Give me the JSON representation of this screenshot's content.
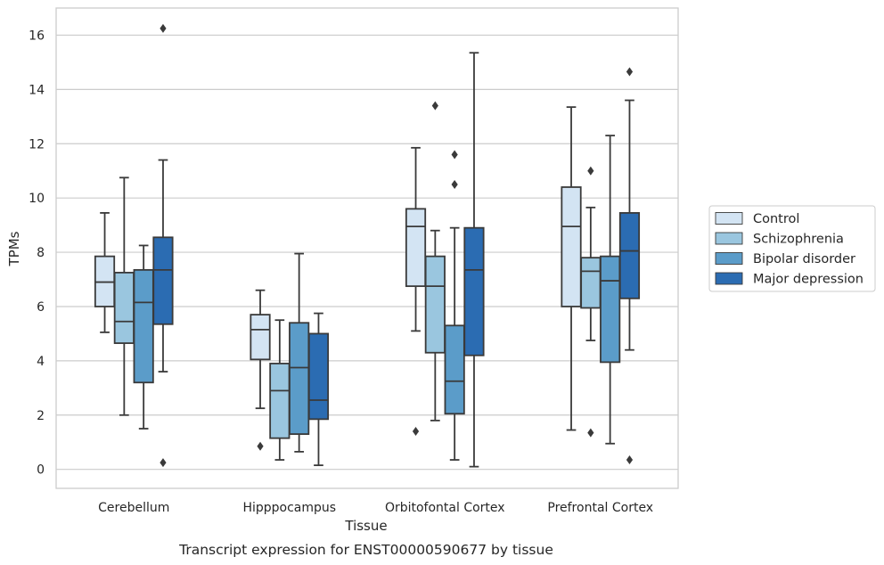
{
  "chart_data": {
    "type": "box",
    "caption": "Transcript expression for ENST00000590677 by tissue",
    "xlabel": "Tissue",
    "ylabel": "TPMs",
    "ylim": [
      -0.7,
      17
    ],
    "yticks": [
      0,
      2,
      4,
      6,
      8,
      10,
      12,
      14,
      16
    ],
    "grid": "horizontal",
    "legend_position": "right",
    "categories": [
      "Cerebellum",
      "Hipppocampus",
      "Orbitofontal Cortex",
      "Prefrontal Cortex"
    ],
    "series": [
      {
        "name": "Control",
        "color": "#d3e4f3",
        "boxes": [
          {
            "whislo": 5.05,
            "q1": 6.0,
            "med": 6.9,
            "q3": 7.85,
            "whishi": 9.45,
            "fliers": []
          },
          {
            "whislo": 2.25,
            "q1": 4.05,
            "med": 5.15,
            "q3": 5.7,
            "whishi": 6.6,
            "fliers": [
              0.85
            ]
          },
          {
            "whislo": 5.1,
            "q1": 6.75,
            "med": 8.95,
            "q3": 9.6,
            "whishi": 11.85,
            "fliers": [
              1.4
            ]
          },
          {
            "whislo": 1.45,
            "q1": 6.0,
            "med": 8.95,
            "q3": 10.4,
            "whishi": 13.35,
            "fliers": []
          }
        ]
      },
      {
        "name": "Schizophrenia",
        "color": "#9ac6df",
        "boxes": [
          {
            "whislo": 2.0,
            "q1": 4.65,
            "med": 5.45,
            "q3": 7.25,
            "whishi": 10.75,
            "fliers": []
          },
          {
            "whislo": 0.35,
            "q1": 1.15,
            "med": 2.9,
            "q3": 3.9,
            "whishi": 5.5,
            "fliers": []
          },
          {
            "whislo": 1.8,
            "q1": 4.3,
            "med": 6.75,
            "q3": 7.85,
            "whishi": 8.8,
            "fliers": [
              13.4
            ]
          },
          {
            "whislo": 4.75,
            "q1": 5.95,
            "med": 7.3,
            "q3": 7.8,
            "whishi": 9.65,
            "fliers": [
              1.35,
              11.0
            ]
          }
        ]
      },
      {
        "name": "Bipolar disorder",
        "color": "#5b9cc9",
        "boxes": [
          {
            "whislo": 1.5,
            "q1": 3.2,
            "med": 6.15,
            "q3": 7.35,
            "whishi": 8.25,
            "fliers": []
          },
          {
            "whislo": 0.65,
            "q1": 1.3,
            "med": 3.75,
            "q3": 5.4,
            "whishi": 7.95,
            "fliers": []
          },
          {
            "whislo": 0.35,
            "q1": 2.05,
            "med": 3.25,
            "q3": 5.3,
            "whishi": 8.9,
            "fliers": [
              10.5,
              11.6
            ]
          },
          {
            "whislo": 0.95,
            "q1": 3.95,
            "med": 6.95,
            "q3": 7.85,
            "whishi": 12.3,
            "fliers": []
          }
        ]
      },
      {
        "name": "Major depression",
        "color": "#2b6cb2",
        "boxes": [
          {
            "whislo": 3.6,
            "q1": 5.35,
            "med": 7.35,
            "q3": 8.55,
            "whishi": 11.4,
            "fliers": [
              0.25,
              16.25
            ]
          },
          {
            "whislo": 0.15,
            "q1": 1.85,
            "med": 2.55,
            "q3": 5.0,
            "whishi": 5.75,
            "fliers": []
          },
          {
            "whislo": 0.1,
            "q1": 4.2,
            "med": 7.35,
            "q3": 8.9,
            "whishi": 15.35,
            "fliers": []
          },
          {
            "whislo": 4.4,
            "q1": 6.3,
            "med": 8.05,
            "q3": 9.45,
            "whishi": 13.6,
            "fliers": [
              0.35,
              14.65
            ]
          }
        ]
      }
    ]
  }
}
